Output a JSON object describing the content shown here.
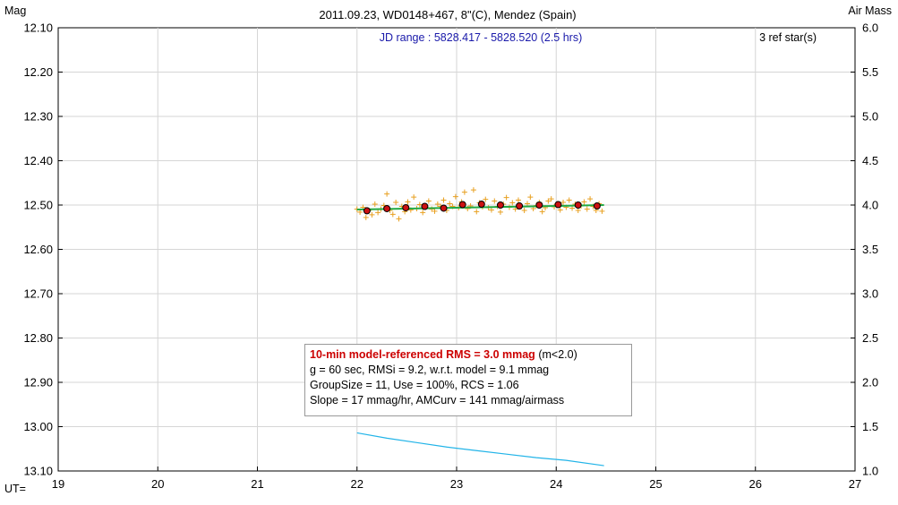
{
  "chart_data": {
    "type": "scatter",
    "title": "2011.09.23, WD0148+467, 8\"(C), Mendez (Spain)",
    "subtitle": "JD range : 5828.417 - 5828.520 (2.5 hrs)",
    "annotation_right": "3 ref star(s)",
    "ylabel_left": "Mag",
    "ylabel_right": "Air Mass",
    "xlabel": "UT=",
    "xlim": [
      19,
      27
    ],
    "ylim": [
      12.1,
      13.1
    ],
    "ylim_right": [
      1.0,
      6.0
    ],
    "x_ticks": [
      "19",
      "20",
      "21",
      "22",
      "23",
      "24",
      "25",
      "26",
      "27"
    ],
    "y_ticks": [
      "12.10",
      "12.20",
      "12.30",
      "12.40",
      "12.50",
      "12.60",
      "12.70",
      "12.80",
      "12.90",
      "13.00",
      "13.10"
    ],
    "y_ticks_right": [
      "6.0",
      "5.5",
      "5.0",
      "4.5",
      "4.0",
      "3.5",
      "3.0",
      "2.5",
      "2.0",
      "1.5",
      "1.0"
    ],
    "series": [
      {
        "kind": "individual",
        "marker": "plus",
        "color": "#e8a020",
        "x": [
          22.0,
          22.03,
          22.06,
          22.09,
          22.12,
          22.15,
          22.18,
          22.21,
          22.24,
          22.27,
          22.3,
          22.33,
          22.36,
          22.39,
          22.42,
          22.45,
          22.48,
          22.51,
          22.54,
          22.57,
          22.6,
          22.63,
          22.66,
          22.69,
          22.72,
          22.75,
          22.78,
          22.81,
          22.84,
          22.87,
          22.9,
          22.93,
          22.96,
          22.99,
          23.02,
          23.05,
          23.08,
          23.11,
          23.14,
          23.17,
          23.2,
          23.23,
          23.26,
          23.29,
          23.32,
          23.35,
          23.38,
          23.41,
          23.44,
          23.47,
          23.5,
          23.53,
          23.56,
          23.59,
          23.62,
          23.65,
          23.68,
          23.71,
          23.74,
          23.77,
          23.8,
          23.83,
          23.86,
          23.89,
          23.92,
          23.95,
          23.98,
          24.01,
          24.04,
          24.07,
          24.1,
          24.13,
          24.16,
          24.19,
          24.22,
          24.25,
          24.28,
          24.31,
          24.34,
          24.37,
          24.4,
          24.43,
          24.46
        ],
        "y": [
          12.509,
          12.516,
          12.505,
          12.528,
          12.512,
          12.522,
          12.498,
          12.517,
          12.509,
          12.501,
          12.475,
          12.512,
          12.521,
          12.494,
          12.531,
          12.503,
          12.515,
          12.493,
          12.511,
          12.482,
          12.508,
          12.499,
          12.517,
          12.505,
          12.491,
          12.509,
          12.514,
          12.498,
          12.503,
          12.489,
          12.512,
          12.497,
          12.503,
          12.481,
          12.506,
          12.493,
          12.471,
          12.508,
          12.502,
          12.466,
          12.515,
          12.495,
          12.504,
          12.487,
          12.506,
          12.511,
          12.491,
          12.503,
          12.516,
          12.498,
          12.483,
          12.505,
          12.495,
          12.509,
          12.489,
          12.503,
          12.512,
          12.497,
          12.482,
          12.508,
          12.501,
          12.494,
          12.515,
          12.506,
          12.491,
          12.486,
          12.504,
          12.497,
          12.511,
          12.494,
          12.505,
          12.489,
          12.507,
          12.498,
          12.512,
          12.502,
          12.493,
          12.509,
          12.486,
          12.503,
          12.512,
          12.497,
          12.514
        ]
      },
      {
        "kind": "group-average",
        "marker": "circle",
        "color": "#cc1111",
        "x": [
          22.1,
          22.3,
          22.49,
          22.68,
          22.87,
          23.06,
          23.25,
          23.44,
          23.63,
          23.83,
          24.02,
          24.22,
          24.41
        ],
        "y": [
          12.513,
          12.508,
          12.506,
          12.503,
          12.507,
          12.499,
          12.498,
          12.5,
          12.502,
          12.5,
          12.499,
          12.5,
          12.502
        ]
      },
      {
        "kind": "model-fit",
        "color": "#22aa44",
        "x": [
          22.0,
          24.48
        ],
        "y": [
          12.51,
          12.5
        ]
      },
      {
        "kind": "air-mass",
        "axis": "right",
        "color": "#22b4e8",
        "x": [
          22.0,
          22.3,
          22.6,
          22.9,
          23.2,
          23.5,
          23.8,
          24.1,
          24.48
        ],
        "y": [
          1.43,
          1.37,
          1.32,
          1.27,
          1.23,
          1.19,
          1.15,
          1.12,
          1.06
        ]
      }
    ]
  },
  "info": {
    "rms_line": "10-min model-referenced RMS = 3.0 mmag",
    "rms_suffix": "(m<2.0)",
    "line2": "g = 60 sec, RMSi = 9.2, w.r.t. model = 9.1 mmag",
    "line3": "GroupSize = 11, Use = 100%, RCS = 1.06",
    "line4": "Slope = 17 mmag/hr, AMCurv = 141 mmag/airmass"
  },
  "colors": {
    "subtitle": "#1a1aaa",
    "individual": "#e8a020",
    "group": "#cc1111",
    "fit": "#22aa44",
    "airmass": "#22b4e8"
  }
}
